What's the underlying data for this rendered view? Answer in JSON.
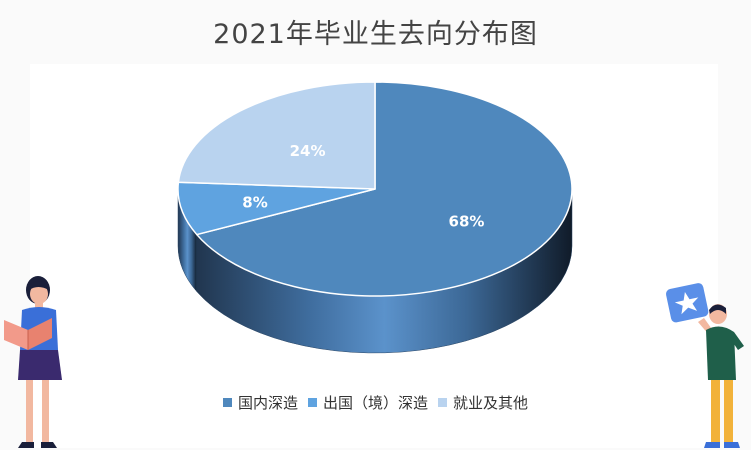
{
  "title": "2021年毕业生去向分布图",
  "chart_data": {
    "type": "pie",
    "style": "3d",
    "title": "2021年毕业生去向分布图",
    "categories": [
      "国内深造",
      "出国（境）深造",
      "就业及其他"
    ],
    "values": [
      68,
      8,
      24
    ],
    "value_labels": [
      "68%",
      "8%",
      "24%"
    ],
    "colors": [
      "#4f88bd",
      "#5fa3e0",
      "#b9d3ef"
    ],
    "legend_position": "bottom"
  },
  "colors": {
    "side_dark": "#1d2e45",
    "side_light": "#5b92cb",
    "label_text": "#ffffff"
  },
  "illustrations": {
    "left": "woman-reading-book-illustration",
    "right": "man-holding-star-card-illustration"
  }
}
